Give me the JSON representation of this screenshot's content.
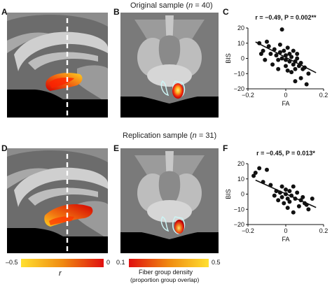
{
  "panel_labels": {
    "a": "A",
    "b": "B",
    "c": "C",
    "d": "D",
    "e": "E",
    "f": "F"
  },
  "row1_title": {
    "pre": "Original sample (",
    "n": "n",
    "post": " = 40)"
  },
  "row2_title": {
    "pre": "Replication sample (",
    "n": "n",
    "post": " = 31)"
  },
  "colorbar_r": {
    "min": "–0.5",
    "max": "0",
    "label": "r"
  },
  "colorbar_density": {
    "min": "0.1",
    "max": "0.5",
    "label1": "Fiber group density",
    "label2": "(proportion group overlap)"
  },
  "colors": {
    "red": "#e01010",
    "yellow": "#ffe030",
    "orange": "#f08a10",
    "brain_bg": "#6f6f6f"
  },
  "chart_data": [
    {
      "type": "scatter",
      "stat_text": "r = −0.49, P = 0.002**",
      "xlabel": "FA",
      "ylabel": "BIS",
      "xlim": [
        -0.2,
        0.2
      ],
      "ylim": [
        -20,
        20
      ],
      "xticks": [
        -0.2,
        0,
        0.2
      ],
      "xtick_labels": [
        "−0.2",
        "0",
        "0.2"
      ],
      "yticks": [
        -20,
        -10,
        0,
        10,
        20
      ],
      "ytick_labels": [
        "−20",
        "−10",
        "0",
        "10",
        "20"
      ],
      "fit": {
        "x": [
          -0.16,
          0.16
        ],
        "y": [
          10.8,
          -9.4
        ]
      },
      "points": [
        [
          -0.14,
          10
        ],
        [
          -0.13,
          3
        ],
        [
          -0.12,
          5
        ],
        [
          -0.11,
          -1
        ],
        [
          -0.1,
          11
        ],
        [
          -0.09,
          8
        ],
        [
          -0.08,
          3
        ],
        [
          -0.07,
          -4
        ],
        [
          -0.06,
          6
        ],
        [
          -0.05,
          2
        ],
        [
          -0.04,
          -1
        ],
        [
          -0.03,
          9
        ],
        [
          -0.03,
          4
        ],
        [
          -0.02,
          19
        ],
        [
          -0.02,
          0
        ],
        [
          -0.01,
          5
        ],
        [
          0,
          -5
        ],
        [
          0,
          2
        ],
        [
          0.01,
          -8
        ],
        [
          0.01,
          7
        ],
        [
          0.02,
          -2
        ],
        [
          0.02,
          3
        ],
        [
          0.03,
          -9
        ],
        [
          0.03,
          1
        ],
        [
          0.04,
          -4
        ],
        [
          0.04,
          5
        ],
        [
          0.05,
          -2
        ],
        [
          0.05,
          -7
        ],
        [
          0.06,
          0
        ],
        [
          0.06,
          3
        ],
        [
          0.07,
          -5
        ],
        [
          0.08,
          -13
        ],
        [
          0.08,
          -3
        ],
        [
          0.09,
          -7
        ],
        [
          0.1,
          -6
        ],
        [
          0.11,
          -17
        ],
        [
          0.12,
          -10
        ],
        [
          0.05,
          -15
        ],
        [
          -0.04,
          -7
        ],
        [
          0.0,
          -1
        ]
      ]
    },
    {
      "type": "scatter",
      "stat_text": "r = −0.45, P = 0.013*",
      "xlabel": "FA",
      "ylabel": "BIS",
      "xlim": [
        -0.2,
        0.2
      ],
      "ylim": [
        -20,
        20
      ],
      "xticks": [
        -0.2,
        0,
        0.2
      ],
      "xtick_labels": [
        "−0.2",
        "0",
        "0.2"
      ],
      "yticks": [
        -20,
        -10,
        0,
        10,
        20
      ],
      "ytick_labels": [
        "−20",
        "−10",
        "0",
        "10",
        "20"
      ],
      "fit": {
        "x": [
          -0.16,
          0.16
        ],
        "y": [
          9.2,
          -8.8
        ]
      },
      "points": [
        [
          -0.17,
          12
        ],
        [
          -0.16,
          14
        ],
        [
          -0.14,
          17
        ],
        [
          -0.12,
          8
        ],
        [
          -0.1,
          16
        ],
        [
          -0.08,
          6
        ],
        [
          -0.06,
          -1
        ],
        [
          -0.05,
          2
        ],
        [
          -0.04,
          -4
        ],
        [
          -0.03,
          1
        ],
        [
          -0.02,
          5
        ],
        [
          -0.02,
          -2
        ],
        [
          -0.01,
          -6
        ],
        [
          0,
          0
        ],
        [
          0,
          3
        ],
        [
          0.01,
          -9
        ],
        [
          0.01,
          -3
        ],
        [
          0.02,
          2
        ],
        [
          0.02,
          -5
        ],
        [
          0.03,
          -1
        ],
        [
          0.04,
          -12
        ],
        [
          0.04,
          5
        ],
        [
          0.05,
          -3
        ],
        [
          0.06,
          1
        ],
        [
          0.07,
          -8
        ],
        [
          0.08,
          -4
        ],
        [
          0.09,
          -2
        ],
        [
          0.1,
          -6
        ],
        [
          0.11,
          -7
        ],
        [
          0.12,
          -10
        ],
        [
          0.14,
          -3
        ]
      ]
    }
  ]
}
